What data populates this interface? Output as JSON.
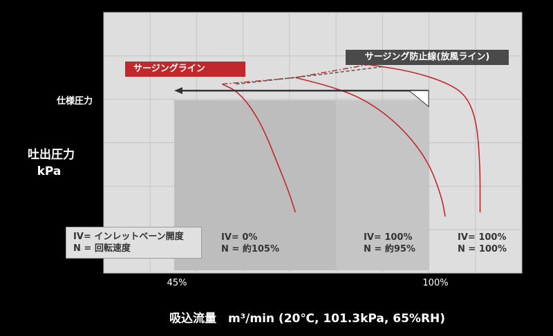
{
  "chart_data": {
    "type": "line",
    "ylabel": "吐出圧力\nkPa",
    "xlabel": "吸込流量　m³/min (20℃, 101.3kPa, 65%RH)",
    "x_ticks": [
      "45%",
      "100%"
    ],
    "spec_label": "仕様圧力",
    "surge_line_label": "サージングライン",
    "anti_surge_label": "サージング防止線(放風ライン)",
    "legend": [
      "IV= インレットベーン開度",
      "N = 回転速度"
    ],
    "series": [
      {
        "label": [
          "IV= 0%",
          "N = 約105%"
        ],
        "color": "#c0282c",
        "points": [
          [
            34,
            87
          ],
          [
            38,
            84
          ],
          [
            42,
            77
          ],
          [
            46,
            66
          ],
          [
            50,
            50
          ],
          [
            53,
            38
          ],
          [
            55,
            28
          ]
        ]
      },
      {
        "label": [
          "IV= 100%",
          "N = 約95%"
        ],
        "color": "#c0282c",
        "points": [
          [
            55,
            90
          ],
          [
            65,
            86
          ],
          [
            75,
            80
          ],
          [
            85,
            68
          ],
          [
            93,
            52
          ],
          [
            97,
            35
          ],
          [
            98,
            26
          ]
        ]
      },
      {
        "label": [
          "IV= 100%",
          "N = 100%"
        ],
        "color": "#c0282c",
        "points": [
          [
            76,
            96
          ],
          [
            88,
            93
          ],
          [
            98,
            88
          ],
          [
            104,
            82
          ],
          [
            107,
            70
          ],
          [
            108,
            50
          ],
          [
            108,
            28
          ]
        ]
      }
    ],
    "surge_line": [
      [
        34,
        87
      ],
      [
        55,
        90
      ],
      [
        76,
        96
      ]
    ],
    "anti_surge_line": [
      [
        38,
        87
      ],
      [
        60,
        91
      ],
      [
        80,
        95
      ]
    ],
    "operating_range": {
      "x": [
        45,
        100
      ],
      "spec_pressure": 84
    },
    "xlim": [
      0,
      120
    ],
    "ylim": [
      0,
      120
    ],
    "grid": true,
    "colors": {
      "curve": "#c0282c",
      "plot_bg": "#dedede",
      "range_bg": "#bdbdbd",
      "arrow": "#333333"
    }
  }
}
